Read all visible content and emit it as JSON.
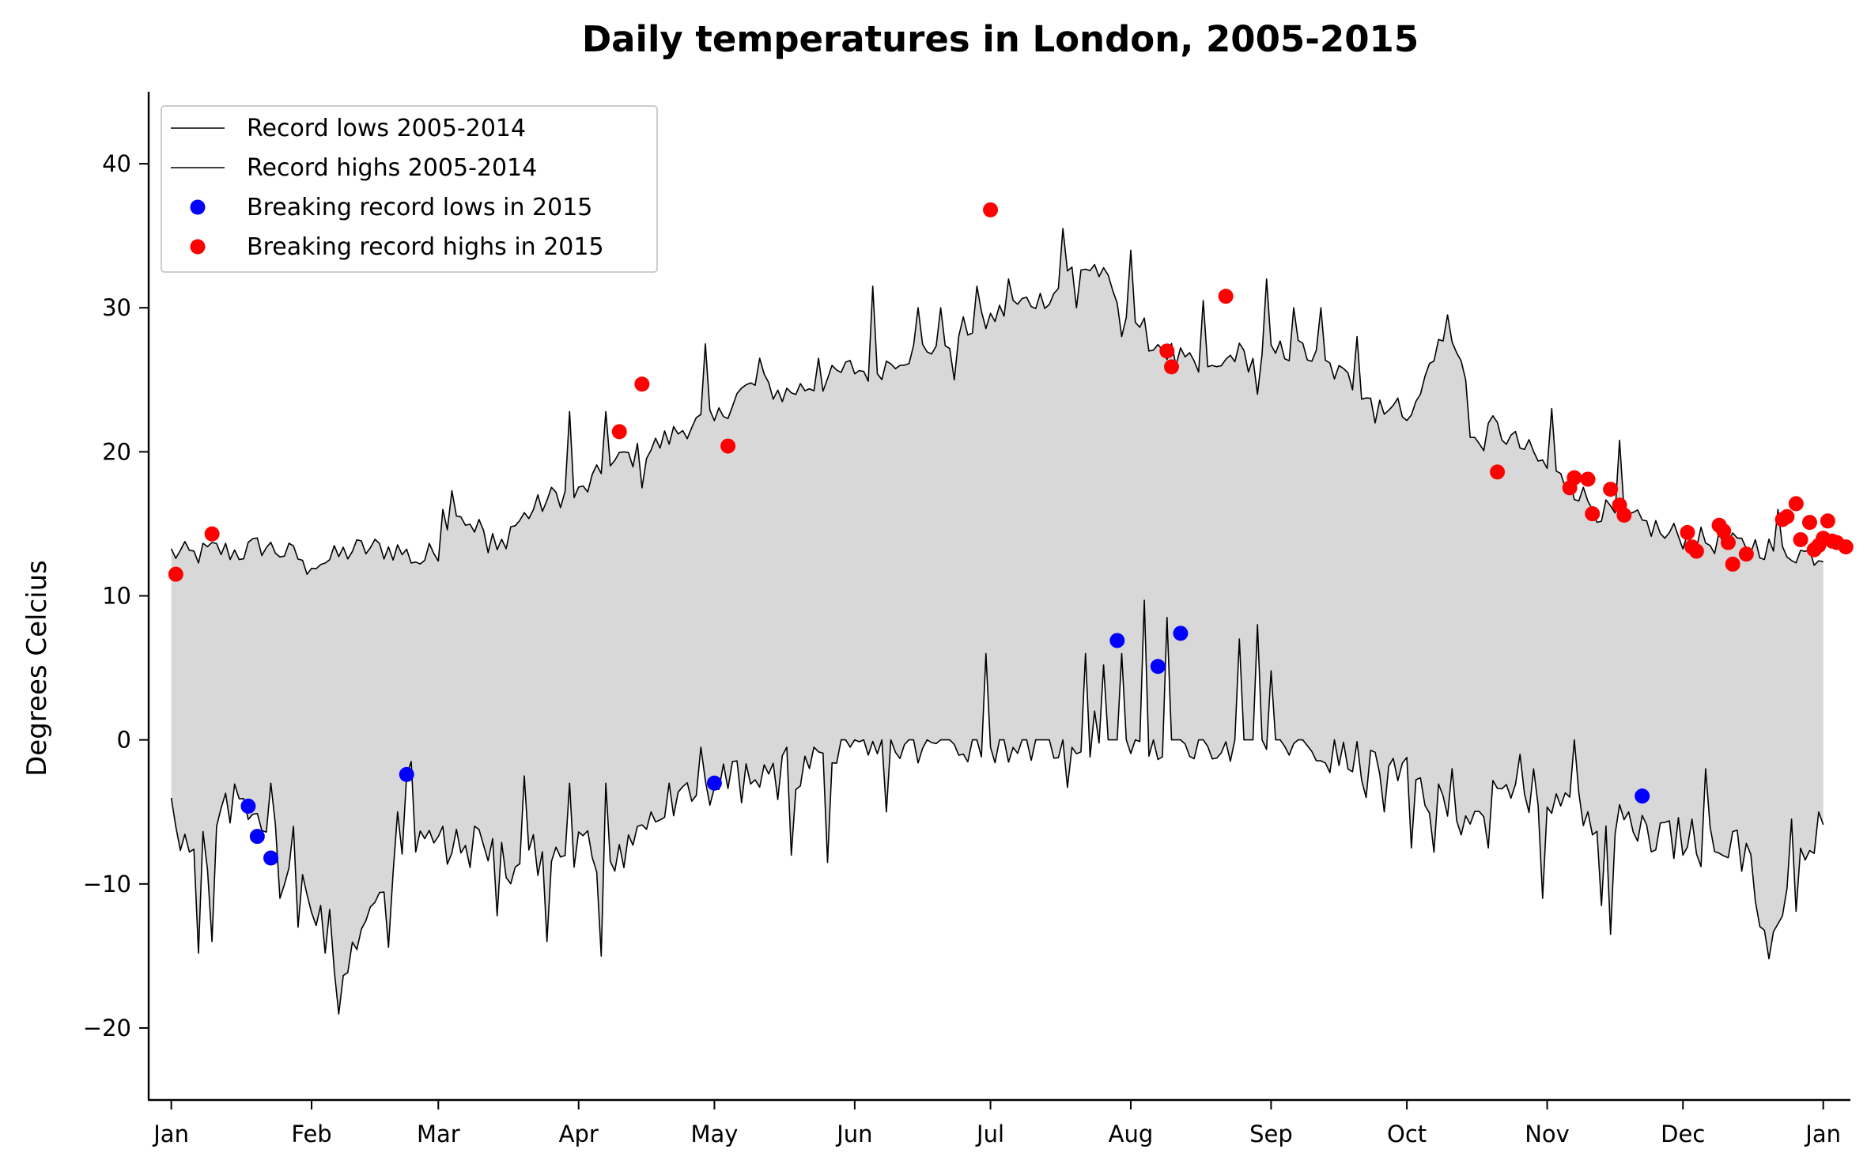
{
  "chart_data": {
    "type": "line",
    "title": "Daily temperatures in London, 2005-2015",
    "xlabel": "",
    "ylabel": "Degrees Celcius",
    "ylim": [
      -25,
      45
    ],
    "xlim_day": [
      -5,
      371
    ],
    "grid": false,
    "legend_position": "top-left",
    "x_ticks": [
      {
        "label": "Jan",
        "day": 0
      },
      {
        "label": "Feb",
        "day": 31
      },
      {
        "label": "Mar",
        "day": 59
      },
      {
        "label": "Apr",
        "day": 90
      },
      {
        "label": "May",
        "day": 120
      },
      {
        "label": "Jun",
        "day": 151
      },
      {
        "label": "Jul",
        "day": 181
      },
      {
        "label": "Aug",
        "day": 212
      },
      {
        "label": "Sep",
        "day": 243
      },
      {
        "label": "Oct",
        "day": 273
      },
      {
        "label": "Nov",
        "day": 304
      },
      {
        "label": "Dec",
        "day": 334
      },
      {
        "label": "Jan",
        "day": 365
      }
    ],
    "y_ticks": [
      {
        "label": "−20",
        "value": -20
      },
      {
        "label": "−10",
        "value": -10
      },
      {
        "label": "0",
        "value": 0
      },
      {
        "label": "10",
        "value": 10
      },
      {
        "label": "20",
        "value": 20
      },
      {
        "label": "30",
        "value": 30
      },
      {
        "label": "40",
        "value": 40
      }
    ],
    "legend": [
      {
        "label": "Record lows 2005-2014",
        "kind": "line"
      },
      {
        "label": "Record highs 2005-2014",
        "kind": "line"
      },
      {
        "label": "Breaking record lows in 2015",
        "kind": "dot",
        "color": "#0000ff"
      },
      {
        "label": "Breaking record highs in 2015",
        "kind": "dot",
        "color": "#ff0000"
      }
    ],
    "fill_color": "#d8d8d8",
    "highs_anchor": [
      [
        0,
        13
      ],
      [
        5,
        12.8
      ],
      [
        10,
        13.2
      ],
      [
        15,
        13
      ],
      [
        20,
        13.5
      ],
      [
        25,
        13
      ],
      [
        30,
        12.5
      ],
      [
        35,
        12.5
      ],
      [
        40,
        13.2
      ],
      [
        45,
        13.3
      ],
      [
        50,
        13.2
      ],
      [
        55,
        12.4
      ],
      [
        60,
        13.5
      ],
      [
        62,
        17
      ],
      [
        65,
        15.3
      ],
      [
        70,
        14.4
      ],
      [
        72,
        13
      ],
      [
        75,
        14.7
      ],
      [
        80,
        16
      ],
      [
        85,
        17
      ],
      [
        90,
        17
      ],
      [
        95,
        18.5
      ],
      [
        100,
        19.5
      ],
      [
        105,
        20
      ],
      [
        110,
        21
      ],
      [
        115,
        22
      ],
      [
        120,
        22
      ],
      [
        125,
        24
      ],
      [
        130,
        24.8
      ],
      [
        135,
        24
      ],
      [
        140,
        24.5
      ],
      [
        145,
        25
      ],
      [
        150,
        25.8
      ],
      [
        155,
        25.5
      ],
      [
        160,
        26.5
      ],
      [
        165,
        27
      ],
      [
        170,
        27.5
      ],
      [
        175,
        28.5
      ],
      [
        180,
        29
      ],
      [
        185,
        30
      ],
      [
        190,
        30.5
      ],
      [
        195,
        31
      ],
      [
        200,
        33
      ],
      [
        205,
        32.5
      ],
      [
        210,
        30
      ],
      [
        212,
        29.5
      ],
      [
        215,
        28.5
      ],
      [
        220,
        27
      ],
      [
        225,
        26
      ],
      [
        230,
        25
      ],
      [
        235,
        27
      ],
      [
        240,
        26
      ],
      [
        245,
        27
      ],
      [
        250,
        27
      ],
      [
        255,
        26
      ],
      [
        260,
        25
      ],
      [
        265,
        24
      ],
      [
        270,
        23
      ],
      [
        275,
        23
      ],
      [
        280,
        28
      ],
      [
        285,
        27
      ],
      [
        288,
        20.5
      ],
      [
        293,
        21.5
      ],
      [
        300,
        20
      ],
      [
        305,
        18.5
      ],
      [
        310,
        17.5
      ],
      [
        315,
        16
      ],
      [
        320,
        15.5
      ],
      [
        325,
        15
      ],
      [
        330,
        14.5
      ],
      [
        335,
        14
      ],
      [
        340,
        13.8
      ],
      [
        345,
        13.5
      ],
      [
        350,
        13.5
      ],
      [
        355,
        13.2
      ],
      [
        360,
        13
      ],
      [
        365,
        12.8
      ]
    ],
    "highs_spikes": [
      [
        30,
        11.5
      ],
      [
        60,
        16
      ],
      [
        70,
        13
      ],
      [
        88,
        22.8
      ],
      [
        96,
        22.8
      ],
      [
        100,
        20
      ],
      [
        104,
        17.5
      ],
      [
        118,
        27.5
      ],
      [
        130,
        26.5
      ],
      [
        143,
        26.5
      ],
      [
        155,
        31.5
      ],
      [
        161,
        26
      ],
      [
        165,
        30
      ],
      [
        170,
        30
      ],
      [
        173,
        25
      ],
      [
        178,
        31.5
      ],
      [
        185,
        32
      ],
      [
        192,
        31
      ],
      [
        197,
        35.5
      ],
      [
        200,
        30
      ],
      [
        204,
        33
      ],
      [
        210,
        28
      ],
      [
        212,
        34
      ],
      [
        216,
        27
      ],
      [
        222,
        26
      ],
      [
        228,
        30.5
      ],
      [
        230,
        26
      ],
      [
        240,
        24
      ],
      [
        242,
        32
      ],
      [
        248,
        30
      ],
      [
        254,
        30
      ],
      [
        262,
        28
      ],
      [
        266,
        22
      ],
      [
        280,
        27.8
      ],
      [
        282,
        29.5
      ],
      [
        287,
        21
      ],
      [
        292,
        22.5
      ],
      [
        305,
        23
      ],
      [
        309,
        18
      ],
      [
        320,
        20.8
      ],
      [
        330,
        14
      ],
      [
        340,
        13.5
      ],
      [
        355,
        16
      ]
    ],
    "lows_anchor": [
      [
        0,
        -3.3
      ],
      [
        2,
        -6.5
      ],
      [
        5,
        -8.5
      ],
      [
        10,
        -6
      ],
      [
        15,
        -4
      ],
      [
        20,
        -5
      ],
      [
        25,
        -8.5
      ],
      [
        30,
        -10.5
      ],
      [
        35,
        -13
      ],
      [
        37,
        -17.8
      ],
      [
        40,
        -14
      ],
      [
        45,
        -12
      ],
      [
        50,
        -8
      ],
      [
        55,
        -6.5
      ],
      [
        60,
        -8
      ],
      [
        65,
        -7.5
      ],
      [
        70,
        -7
      ],
      [
        75,
        -9
      ],
      [
        80,
        -8
      ],
      [
        85,
        -8
      ],
      [
        90,
        -7.5
      ],
      [
        95,
        -8
      ],
      [
        100,
        -7.5
      ],
      [
        105,
        -6
      ],
      [
        110,
        -5
      ],
      [
        115,
        -4
      ],
      [
        120,
        -3
      ],
      [
        125,
        -3
      ],
      [
        130,
        -3
      ],
      [
        135,
        -2.5
      ],
      [
        140,
        -2
      ],
      [
        145,
        -1.5
      ],
      [
        150,
        -1
      ],
      [
        155,
        -1
      ],
      [
        160,
        -0.5
      ],
      [
        165,
        -0.5
      ],
      [
        170,
        -0.3
      ],
      [
        175,
        0
      ],
      [
        180,
        0
      ],
      [
        185,
        0
      ],
      [
        190,
        0
      ],
      [
        195,
        0
      ],
      [
        200,
        0
      ],
      [
        205,
        0
      ],
      [
        210,
        0
      ],
      [
        215,
        0
      ],
      [
        220,
        0
      ],
      [
        225,
        0
      ],
      [
        230,
        0
      ],
      [
        235,
        0
      ],
      [
        240,
        0
      ],
      [
        245,
        0
      ],
      [
        250,
        -0.5
      ],
      [
        255,
        -1
      ],
      [
        260,
        -1.5
      ],
      [
        265,
        -2
      ],
      [
        270,
        -2.5
      ],
      [
        275,
        -3
      ],
      [
        280,
        -4.5
      ],
      [
        285,
        -5
      ],
      [
        290,
        -4.5
      ],
      [
        295,
        -4
      ],
      [
        300,
        -3.5
      ],
      [
        305,
        -4
      ],
      [
        310,
        -5
      ],
      [
        315,
        -5
      ],
      [
        320,
        -6
      ],
      [
        325,
        -6
      ],
      [
        330,
        -6.5
      ],
      [
        335,
        -7
      ],
      [
        340,
        -7
      ],
      [
        345,
        -7.5
      ],
      [
        350,
        -8
      ],
      [
        352,
        -14.8
      ],
      [
        355,
        -13
      ],
      [
        360,
        -8
      ],
      [
        365,
        -5.3
      ]
    ],
    "lows_spikes": [
      [
        6,
        -14.8
      ],
      [
        8,
        -9
      ],
      [
        9,
        -14
      ],
      [
        22,
        -3
      ],
      [
        24,
        -11
      ],
      [
        27,
        -6
      ],
      [
        28,
        -13
      ],
      [
        34,
        -14.8
      ],
      [
        36,
        -16
      ],
      [
        48,
        -14.4
      ],
      [
        50,
        -5
      ],
      [
        52,
        -2.5
      ],
      [
        53,
        -1.5
      ],
      [
        60,
        -6
      ],
      [
        72,
        -12.2
      ],
      [
        78,
        -2.5
      ],
      [
        83,
        -14
      ],
      [
        88,
        -3
      ],
      [
        95,
        -15
      ],
      [
        96,
        -3
      ],
      [
        106,
        -5
      ],
      [
        110,
        -3
      ],
      [
        117,
        -0.5
      ],
      [
        124,
        -1.5
      ],
      [
        136,
        -0.5
      ],
      [
        137,
        -8
      ],
      [
        142,
        -0.5
      ],
      [
        145,
        -8.5
      ],
      [
        150,
        -0.5
      ],
      [
        158,
        -5
      ],
      [
        180,
        6
      ],
      [
        198,
        -3.3
      ],
      [
        202,
        6
      ],
      [
        204,
        2
      ],
      [
        206,
        5.2
      ],
      [
        208,
        0
      ],
      [
        210,
        6
      ],
      [
        215,
        9.7
      ],
      [
        220,
        8.5
      ],
      [
        236,
        7
      ],
      [
        240,
        8
      ],
      [
        243,
        4.8
      ],
      [
        264,
        -4
      ],
      [
        268,
        -5
      ],
      [
        274,
        -7.5
      ],
      [
        279,
        -7.8
      ],
      [
        283,
        -2
      ],
      [
        291,
        -7.5
      ],
      [
        298,
        -1
      ],
      [
        303,
        -11
      ],
      [
        310,
        0
      ],
      [
        316,
        -11.5
      ],
      [
        318,
        -13.5
      ],
      [
        322,
        -5
      ],
      [
        336,
        -5.5
      ],
      [
        338,
        -8.8
      ],
      [
        339,
        -2
      ],
      [
        350,
        -11.2
      ],
      [
        353,
        -15.2
      ],
      [
        358,
        -5.5
      ],
      [
        359,
        -11.9
      ]
    ],
    "record_lows_2015": [
      [
        17,
        -4.6
      ],
      [
        19,
        -6.7
      ],
      [
        22,
        -8.2
      ],
      [
        52,
        -2.4
      ],
      [
        120,
        -3
      ],
      [
        209,
        6.9
      ],
      [
        218,
        5.1
      ],
      [
        223,
        7.4
      ],
      [
        325,
        -3.9
      ]
    ],
    "record_highs_2015": [
      [
        1,
        11.5
      ],
      [
        9,
        14.3
      ],
      [
        99,
        21.4
      ],
      [
        104,
        24.7
      ],
      [
        123,
        20.4
      ],
      [
        181,
        36.8
      ],
      [
        220,
        27
      ],
      [
        221,
        25.9
      ],
      [
        233,
        30.8
      ],
      [
        293,
        18.6
      ],
      [
        309,
        17.5
      ],
      [
        310,
        18.2
      ],
      [
        313,
        18.1
      ],
      [
        314,
        15.7
      ],
      [
        318,
        17.4
      ],
      [
        320,
        16.3
      ],
      [
        321,
        15.6
      ],
      [
        335,
        14.4
      ],
      [
        336,
        13.4
      ],
      [
        337,
        13.1
      ],
      [
        342,
        14.9
      ],
      [
        343,
        14.5
      ],
      [
        344,
        13.7
      ],
      [
        345,
        12.2
      ],
      [
        348,
        12.9
      ],
      [
        356,
        15.3
      ],
      [
        357,
        15.5
      ],
      [
        359,
        16.4
      ],
      [
        360,
        13.9
      ],
      [
        362,
        15.1
      ],
      [
        363,
        13.2
      ],
      [
        364,
        13.5
      ],
      [
        365,
        14
      ],
      [
        366,
        15.2
      ],
      [
        367,
        13.8
      ],
      [
        368,
        13.7
      ],
      [
        370,
        13.4
      ]
    ]
  }
}
